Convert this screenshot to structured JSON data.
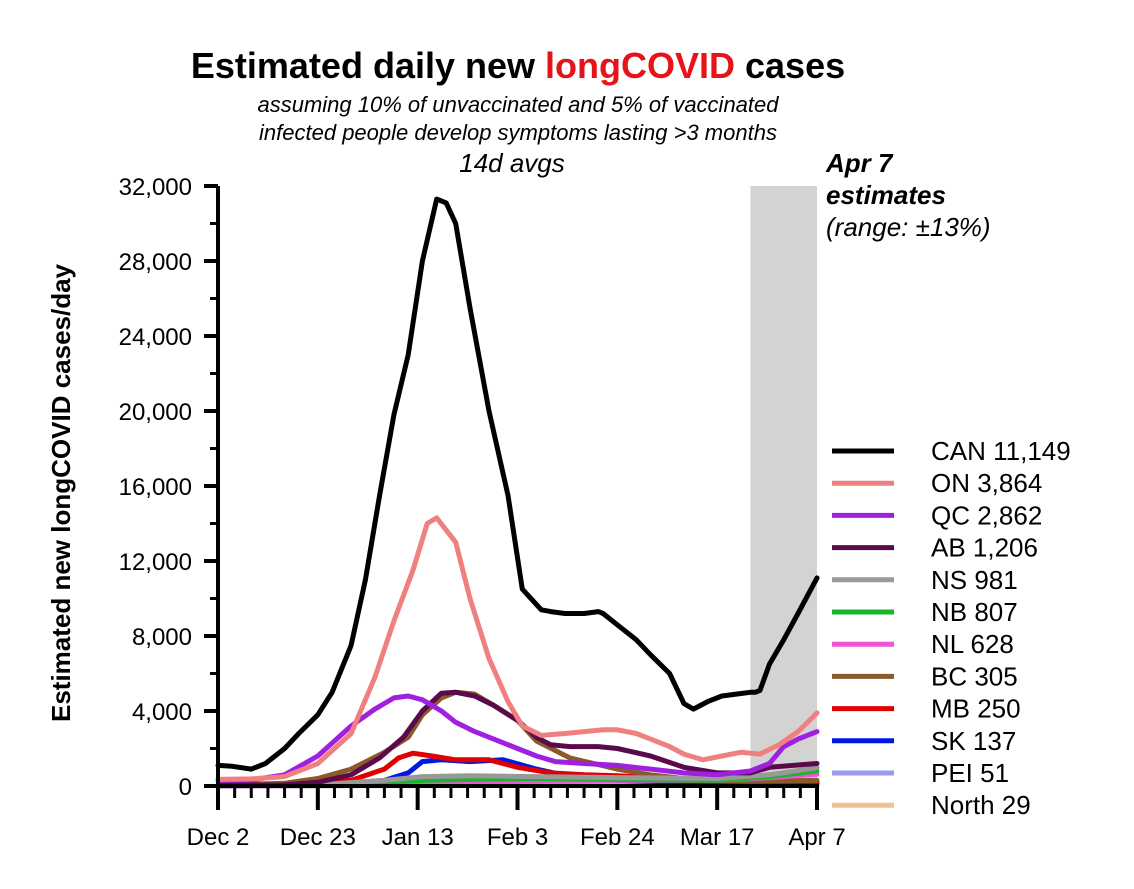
{
  "chart_data": {
    "type": "line",
    "title_prefix": "Estimated daily new ",
    "title_highlight": "longCOVID",
    "title_suffix": " cases",
    "subtitle_line1": "assuming 10% of unvaccinated and 5% of vaccinated",
    "subtitle_line2": "infected people develop symptoms lasting >3 months",
    "subtitle_line3": "14d avgs",
    "estimate_label_line1": "Apr 7",
    "estimate_label_line2": "estimates",
    "estimate_label_line3": "(range: ±13%)",
    "ylabel": "Estimated new longCOVID cases/day",
    "xlabel": "",
    "ylim": [
      0,
      32000
    ],
    "yticks": [
      0,
      4000,
      8000,
      12000,
      16000,
      20000,
      24000,
      28000,
      32000
    ],
    "ytick_labels": [
      "0",
      "4,000",
      "8,000",
      "12,000",
      "16,000",
      "20,000",
      "24,000",
      "28,000",
      "32,000"
    ],
    "xlim": [
      "2021-12-02",
      "2022-04-07"
    ],
    "xticks": [
      "2021-12-02",
      "2021-12-23",
      "2022-01-13",
      "2022-02-03",
      "2022-02-24",
      "2022-03-17",
      "2022-04-07"
    ],
    "xtick_labels": [
      "Dec 2",
      "Dec 23",
      "Jan 13",
      "Feb 3",
      "Feb 24",
      "Mar 17",
      "Apr 7"
    ],
    "shaded_region": [
      "2022-03-24",
      "2022-04-07"
    ],
    "grid": false,
    "legend_position": "right",
    "series": [
      {
        "name": "CAN 11,149",
        "color": "#000000",
        "x": [
          "2021-12-02",
          "2021-12-05",
          "2021-12-09",
          "2021-12-12",
          "2021-12-16",
          "2021-12-19",
          "2021-12-23",
          "2021-12-26",
          "2021-12-30",
          "2022-01-02",
          "2022-01-05",
          "2022-01-08",
          "2022-01-11",
          "2022-01-14",
          "2022-01-17",
          "2022-01-19",
          "2022-01-21",
          "2022-01-24",
          "2022-01-28",
          "2022-02-01",
          "2022-02-04",
          "2022-02-08",
          "2022-02-10",
          "2022-02-13",
          "2022-02-17",
          "2022-02-20",
          "2022-02-21",
          "2022-02-24",
          "2022-02-28",
          "2022-03-03",
          "2022-03-07",
          "2022-03-10",
          "2022-03-12",
          "2022-03-15",
          "2022-03-18",
          "2022-03-21",
          "2022-03-24",
          "2022-03-25",
          "2022-03-26",
          "2022-03-28",
          "2022-03-31",
          "2022-04-03",
          "2022-04-07"
        ],
        "y": [
          1100,
          1050,
          900,
          1200,
          2000,
          2800,
          3800,
          5000,
          7500,
          11000,
          15500,
          19800,
          23000,
          28000,
          31300,
          31100,
          30000,
          25500,
          20000,
          15500,
          10500,
          9400,
          9300,
          9200,
          9200,
          9300,
          9200,
          8600,
          7800,
          7000,
          6000,
          4400,
          4100,
          4500,
          4800,
          4900,
          5000,
          5000,
          5100,
          6500,
          7800,
          9200,
          11100
        ]
      },
      {
        "name": "ON 3,864",
        "color": "#f08080",
        "x": [
          "2021-12-02",
          "2021-12-09",
          "2021-12-16",
          "2021-12-23",
          "2021-12-30",
          "2022-01-04",
          "2022-01-08",
          "2022-01-12",
          "2022-01-15",
          "2022-01-17",
          "2022-01-21",
          "2022-01-24",
          "2022-01-28",
          "2022-02-01",
          "2022-02-04",
          "2022-02-08",
          "2022-02-13",
          "2022-02-17",
          "2022-02-21",
          "2022-02-24",
          "2022-02-28",
          "2022-03-03",
          "2022-03-07",
          "2022-03-10",
          "2022-03-14",
          "2022-03-18",
          "2022-03-22",
          "2022-03-26",
          "2022-03-30",
          "2022-04-03",
          "2022-04-07"
        ],
        "y": [
          350,
          380,
          500,
          1200,
          2800,
          5800,
          8800,
          11500,
          14000,
          14300,
          13000,
          10000,
          6800,
          4500,
          3200,
          2700,
          2800,
          2900,
          3000,
          3000,
          2800,
          2500,
          2100,
          1700,
          1400,
          1600,
          1800,
          1700,
          2200,
          2900,
          3900
        ]
      },
      {
        "name": "QC 2,862",
        "color": "#a020e0",
        "x": [
          "2021-12-02",
          "2021-12-09",
          "2021-12-16",
          "2021-12-23",
          "2021-12-30",
          "2022-01-04",
          "2022-01-08",
          "2022-01-11",
          "2022-01-14",
          "2022-01-18",
          "2022-01-21",
          "2022-01-25",
          "2022-01-29",
          "2022-02-03",
          "2022-02-07",
          "2022-02-11",
          "2022-02-17",
          "2022-02-24",
          "2022-03-03",
          "2022-03-10",
          "2022-03-17",
          "2022-03-24",
          "2022-03-28",
          "2022-03-31",
          "2022-04-03",
          "2022-04-07"
        ],
        "y": [
          300,
          320,
          600,
          1600,
          3200,
          4100,
          4700,
          4800,
          4600,
          4000,
          3400,
          2900,
          2500,
          2000,
          1600,
          1300,
          1200,
          1100,
          900,
          700,
          600,
          800,
          1200,
          2100,
          2500,
          2900
        ]
      },
      {
        "name": "AB 1,206",
        "color": "#5a0a4a",
        "x": [
          "2021-12-02",
          "2021-12-16",
          "2021-12-23",
          "2021-12-30",
          "2022-01-05",
          "2022-01-10",
          "2022-01-14",
          "2022-01-18",
          "2022-01-21",
          "2022-01-25",
          "2022-01-29",
          "2022-02-03",
          "2022-02-07",
          "2022-02-10",
          "2022-02-14",
          "2022-02-20",
          "2022-02-24",
          "2022-03-03",
          "2022-03-10",
          "2022-03-17",
          "2022-03-24",
          "2022-03-28",
          "2022-04-07"
        ],
        "y": [
          50,
          60,
          200,
          600,
          1500,
          2600,
          4000,
          4950,
          5000,
          4800,
          4300,
          3500,
          2600,
          2200,
          2100,
          2100,
          2000,
          1600,
          1000,
          700,
          700,
          1000,
          1200
        ]
      },
      {
        "name": "NS 981",
        "color": "#999999",
        "x": [
          "2021-12-02",
          "2021-12-23",
          "2022-01-06",
          "2022-01-14",
          "2022-01-24",
          "2022-02-07",
          "2022-02-24",
          "2022-03-17",
          "2022-03-28",
          "2022-04-07"
        ],
        "y": [
          30,
          60,
          300,
          500,
          550,
          500,
          450,
          400,
          600,
          980
        ]
      },
      {
        "name": "NB 807",
        "color": "#1ab52b",
        "x": [
          "2021-12-02",
          "2021-12-23",
          "2022-01-06",
          "2022-01-14",
          "2022-01-24",
          "2022-02-07",
          "2022-02-24",
          "2022-03-17",
          "2022-03-28",
          "2022-04-07"
        ],
        "y": [
          30,
          50,
          200,
          300,
          350,
          400,
          350,
          300,
          500,
          800
        ]
      },
      {
        "name": "NL 628",
        "color": "#ee55d8",
        "x": [
          "2021-12-02",
          "2021-12-23",
          "2022-01-06",
          "2022-01-14",
          "2022-01-24",
          "2022-02-07",
          "2022-02-24",
          "2022-03-17",
          "2022-03-28",
          "2022-04-07"
        ],
        "y": [
          10,
          20,
          80,
          150,
          200,
          250,
          300,
          300,
          450,
          630
        ]
      },
      {
        "name": "BC 305",
        "color": "#8b5a2b",
        "x": [
          "2021-12-02",
          "2021-12-16",
          "2021-12-23",
          "2021-12-30",
          "2022-01-06",
          "2022-01-11",
          "2022-01-14",
          "2022-01-18",
          "2022-01-21",
          "2022-01-25",
          "2022-01-29",
          "2022-02-03",
          "2022-02-07",
          "2022-02-14",
          "2022-02-24",
          "2022-03-03",
          "2022-03-10",
          "2022-03-17",
          "2022-03-24",
          "2022-04-07"
        ],
        "y": [
          50,
          150,
          400,
          900,
          1800,
          2600,
          3800,
          4700,
          5000,
          4900,
          4300,
          3500,
          2400,
          1500,
          900,
          600,
          400,
          300,
          250,
          300
        ]
      },
      {
        "name": "MB 250",
        "color": "#e00000",
        "x": [
          "2021-12-02",
          "2021-12-16",
          "2021-12-30",
          "2022-01-06",
          "2022-01-09",
          "2022-01-12",
          "2022-01-16",
          "2022-01-21",
          "2022-01-28",
          "2022-02-03",
          "2022-02-10",
          "2022-02-17",
          "2022-02-24",
          "2022-03-03",
          "2022-03-10",
          "2022-03-17",
          "2022-03-24",
          "2022-04-07"
        ],
        "y": [
          20,
          80,
          300,
          900,
          1500,
          1750,
          1600,
          1400,
          1400,
          1000,
          700,
          600,
          550,
          450,
          300,
          250,
          250,
          250
        ]
      },
      {
        "name": "SK 137",
        "color": "#0018e0",
        "x": [
          "2021-12-02",
          "2021-12-23",
          "2022-01-06",
          "2022-01-11",
          "2022-01-14",
          "2022-01-18",
          "2022-01-24",
          "2022-01-31",
          "2022-02-07",
          "2022-02-14",
          "2022-02-24",
          "2022-03-10",
          "2022-03-24",
          "2022-04-07"
        ],
        "y": [
          10,
          50,
          300,
          700,
          1300,
          1400,
          1300,
          1400,
          900,
          500,
          300,
          200,
          150,
          140
        ]
      },
      {
        "name": "PEI 51",
        "color": "#9a9af0",
        "x": [
          "2021-12-02",
          "2021-12-23",
          "2022-01-14",
          "2022-02-07",
          "2022-03-17",
          "2022-04-07"
        ],
        "y": [
          5,
          10,
          40,
          50,
          40,
          50
        ]
      },
      {
        "name": "North 29",
        "color": "#f0c090",
        "x": [
          "2021-12-02",
          "2021-12-23",
          "2022-01-14",
          "2022-02-07",
          "2022-03-17",
          "2022-04-07"
        ],
        "y": [
          5,
          10,
          20,
          30,
          25,
          30
        ]
      }
    ]
  }
}
